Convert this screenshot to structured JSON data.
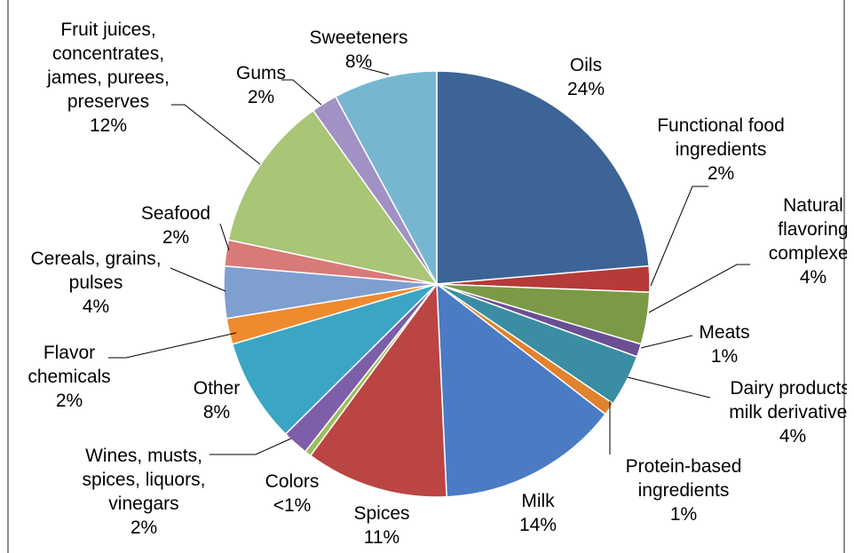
{
  "chart_data": {
    "type": "pie",
    "title": "",
    "start_angle_deg": 0,
    "direction": "clockwise",
    "slices": [
      {
        "name": "Oils",
        "value": 24,
        "label": "24%",
        "color": "#3c6496"
      },
      {
        "name": "Functional food ingredients",
        "value": 2,
        "label": "2%",
        "color": "#b63a37"
      },
      {
        "name": "Natural flavoring complexes",
        "value": 4,
        "label": "4%",
        "color": "#7b9a45"
      },
      {
        "name": "Meats",
        "value": 1,
        "label": "1%",
        "color": "#6a4f93"
      },
      {
        "name": "Dairy products, milk derivatives",
        "value": 4,
        "label": "4%",
        "color": "#3a8da3"
      },
      {
        "name": "Protein-based ingredients",
        "value": 1,
        "label": "1%",
        "color": "#e0822e"
      },
      {
        "name": "Milk",
        "value": 14,
        "label": "14%",
        "color": "#4a7bc3"
      },
      {
        "name": "Spices",
        "value": 11,
        "label": "11%",
        "color": "#bb4542"
      },
      {
        "name": "Colors",
        "value": 0.5,
        "label": "<1%",
        "color": "#9cbd5a"
      },
      {
        "name": "Wines, musts, spices, liquors, vinegars",
        "value": 2,
        "label": "2%",
        "color": "#7d5ea8"
      },
      {
        "name": "Other",
        "value": 8,
        "label": "8%",
        "color": "#3aa6c3"
      },
      {
        "name": "Flavor chemicals",
        "value": 2,
        "label": "2%",
        "color": "#ef8a2f"
      },
      {
        "name": "Cereals, grains, pulses",
        "value": 4,
        "label": "4%",
        "color": "#7f9fd1"
      },
      {
        "name": "Seafood",
        "value": 2,
        "label": "2%",
        "color": "#d87a78"
      },
      {
        "name": "Fruit juices, concentrates, james, purees, preserves",
        "value": 12,
        "label": "12%",
        "color": "#a9c576"
      },
      {
        "name": "Gums",
        "value": 2,
        "label": "2%",
        "color": "#a191c4"
      },
      {
        "name": "Sweeteners",
        "value": 8,
        "label": "8%",
        "color": "#77b6d0"
      }
    ]
  }
}
